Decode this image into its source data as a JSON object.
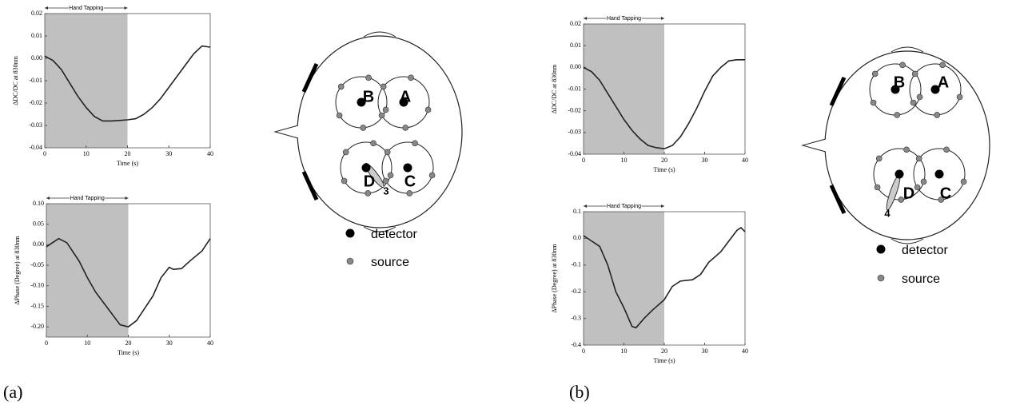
{
  "chart_data": [
    {
      "type": "line",
      "annotation": "Hand Tapping",
      "shaded_span": [
        0,
        20
      ],
      "xlabel": "Time (s)",
      "ylabel": "ΔDC/DC at 830nm",
      "color": "#222222",
      "x": [
        0,
        2,
        4,
        6,
        8,
        10,
        12,
        14,
        16,
        18,
        20,
        22,
        24,
        26,
        28,
        30,
        32,
        34,
        36,
        38,
        40
      ],
      "values": [
        0.001,
        -0.001,
        -0.005,
        -0.011,
        -0.017,
        -0.022,
        -0.026,
        -0.028,
        -0.028,
        -0.0278,
        -0.0275,
        -0.027,
        -0.025,
        -0.022,
        -0.018,
        -0.013,
        -0.008,
        -0.003,
        0.002,
        0.0055,
        0.005
      ],
      "xlim": [
        0,
        40
      ],
      "xticks": [
        0,
        10,
        20,
        30,
        40
      ],
      "ylim": [
        -0.04,
        0.02
      ],
      "yticks": [
        -0.04,
        -0.03,
        -0.02,
        -0.01,
        {
          "value": 0,
          "label": "0.00"
        },
        0.01,
        0.02
      ]
    },
    {
      "type": "line",
      "annotation": "Hand Tapping",
      "shaded_span": [
        0,
        20
      ],
      "xlabel": "Time (s)",
      "ylabel": "ΔPhase (Degree) at 830nm",
      "color": "#222222",
      "x": [
        0,
        3,
        5,
        8,
        10,
        12,
        15,
        18,
        20,
        22,
        24,
        26,
        28,
        30,
        31,
        33,
        35,
        38,
        40
      ],
      "values": [
        -0.005,
        0.015,
        0.005,
        -0.04,
        -0.08,
        -0.115,
        -0.155,
        -0.195,
        -0.2,
        -0.185,
        -0.155,
        -0.125,
        -0.08,
        -0.055,
        -0.06,
        -0.058,
        -0.04,
        -0.015,
        0.015
      ],
      "xlim": [
        0,
        40
      ],
      "xticks": [
        0,
        10,
        20,
        30,
        40
      ],
      "ylim": [
        -0.225,
        0.1
      ],
      "yticks": [
        {
          "value": -0.2,
          "label": "-0.20"
        },
        -0.15,
        {
          "value": -0.1,
          "label": "-0.10"
        },
        -0.05,
        {
          "value": 0,
          "label": "0.00"
        },
        0.05,
        {
          "value": 0.1,
          "label": "0.10"
        }
      ]
    },
    {
      "type": "line",
      "annotation": "Hand Tapping",
      "shaded_span": [
        0,
        20
      ],
      "xlabel": "Time (s)",
      "ylabel": "ΔDC/DC at 830nm",
      "color": "#222222",
      "x": [
        0,
        2,
        4,
        6,
        8,
        10,
        12,
        14,
        16,
        18,
        20,
        22,
        24,
        26,
        28,
        30,
        32,
        34,
        36,
        38,
        40
      ],
      "values": [
        0,
        -0.002,
        -0.006,
        -0.012,
        -0.018,
        -0.024,
        -0.029,
        -0.033,
        -0.036,
        -0.037,
        -0.0375,
        -0.036,
        -0.032,
        -0.026,
        -0.019,
        -0.011,
        -0.004,
        0,
        0.003,
        0.0035,
        0.0035
      ],
      "xlim": [
        0,
        40
      ],
      "xticks": [
        0,
        10,
        20,
        30,
        40
      ],
      "ylim": [
        -0.04,
        0.02
      ],
      "yticks": [
        -0.04,
        -0.03,
        -0.02,
        -0.01,
        {
          "value": 0,
          "label": "0.00"
        },
        0.01,
        0.02
      ]
    },
    {
      "type": "line",
      "annotation": "Hand Tapping",
      "shaded_span": [
        0,
        20
      ],
      "xlabel": "Time (s)",
      "ylabel": "ΔPhase (Degree) at 830nm",
      "color": "#222222",
      "x": [
        0,
        2,
        4,
        6,
        8,
        10,
        12,
        13,
        15,
        17,
        20,
        22,
        24,
        27,
        29,
        31,
        34,
        36,
        38,
        39,
        40
      ],
      "values": [
        0.01,
        -0.01,
        -0.03,
        -0.1,
        -0.2,
        -0.26,
        -0.33,
        -0.335,
        -0.3,
        -0.27,
        -0.23,
        -0.18,
        -0.16,
        -0.155,
        -0.135,
        -0.09,
        -0.05,
        -0.01,
        0.03,
        0.04,
        0.025
      ],
      "xlim": [
        0,
        40
      ],
      "xticks": [
        0,
        10,
        20,
        30,
        40
      ],
      "ylim": [
        -0.4,
        0.1
      ],
      "yticks": [
        -0.4,
        -0.3,
        -0.2,
        -0.1,
        {
          "value": 0,
          "label": "0.0"
        },
        0.1
      ]
    }
  ],
  "diagrams": [
    {
      "panel": "(a)",
      "regions": [
        "B",
        "A",
        "D",
        "C"
      ],
      "channel": "3",
      "legend": [
        "detector",
        "source"
      ]
    },
    {
      "panel": "(b)",
      "regions": [
        "B",
        "A",
        "D",
        "C"
      ],
      "channel": "4",
      "legend": [
        "detector",
        "source"
      ]
    }
  ]
}
